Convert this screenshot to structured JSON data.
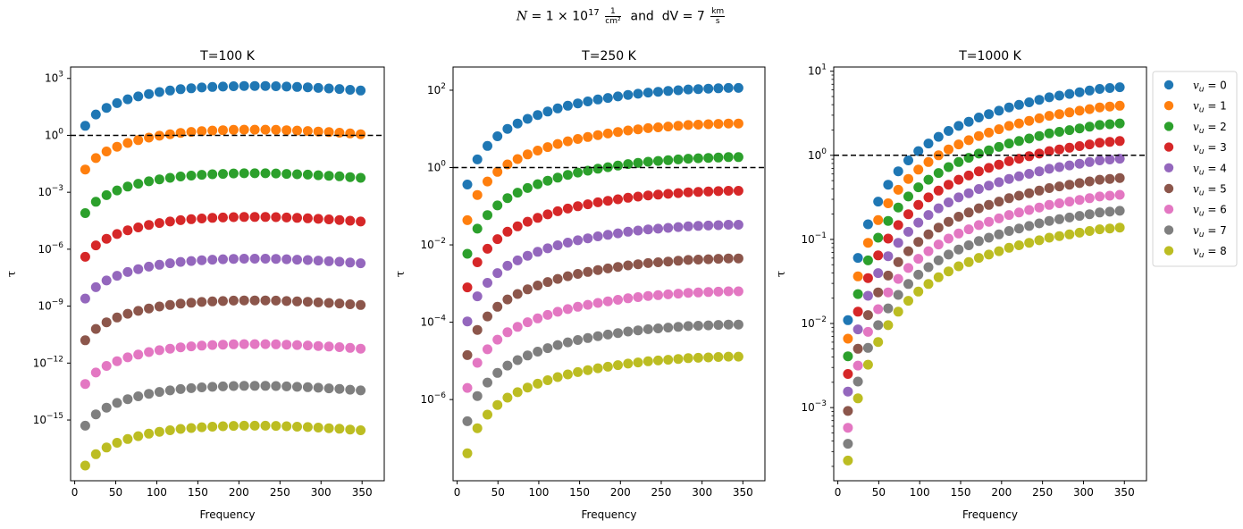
{
  "suptitle": {
    "N_symbol": "N",
    "N_value": "= 1 × 10",
    "N_exp": "17",
    "N_unit_num": "1",
    "N_unit_den": "cm²",
    "connector": "and",
    "dV_label": "dV = 7",
    "dV_unit_num": "km",
    "dV_unit_den": "s"
  },
  "legend": {
    "entries": [
      "v_u = 0",
      "v_u = 1",
      "v_u = 2",
      "v_u = 3",
      "v_u = 4",
      "v_u = 5",
      "v_u = 6",
      "v_u = 7",
      "v_u = 8"
    ],
    "symbol": "v",
    "subscript": "u",
    "values": [
      "0",
      "1",
      "2",
      "3",
      "4",
      "5",
      "6",
      "7",
      "8"
    ]
  },
  "colors": [
    "#1f77b4",
    "#ff7f0e",
    "#2ca02c",
    "#d62728",
    "#9467bd",
    "#8c564b",
    "#e377c2",
    "#7f7f7f",
    "#bcbd22"
  ],
  "chart_data": [
    {
      "type": "scatter",
      "title": "T=100 K",
      "xlabel": "Frequency",
      "ylabel": "τ",
      "yscale": "log",
      "xlim": [
        -5,
        377
      ],
      "ylim_log10": [
        -18.2,
        3.6
      ],
      "xticks": [
        "0",
        "50",
        "100",
        "150",
        "200",
        "250",
        "300",
        "350"
      ],
      "yticks": [
        {
          "exp": 3,
          "label": "3"
        },
        {
          "exp": 0,
          "label": "0"
        },
        {
          "exp": -3,
          "label": "−3"
        },
        {
          "exp": -6,
          "label": "−6"
        },
        {
          "exp": -9,
          "label": "−9"
        },
        {
          "exp": -12,
          "label": "−12"
        },
        {
          "exp": -15,
          "label": "−15"
        }
      ],
      "hline": 1,
      "x_start": 12.9,
      "x_step": 12.9,
      "n_points": 27,
      "shape_log10": [
        -2.1,
        -1.5,
        -1.15,
        -0.9,
        -0.7,
        -0.55,
        -0.42,
        -0.32,
        -0.24,
        -0.17,
        -0.12,
        -0.08,
        -0.05,
        -0.03,
        -0.01,
        0,
        0,
        0,
        -0.01,
        -0.03,
        -0.05,
        -0.07,
        -0.1,
        -0.13,
        -0.16,
        -0.2,
        -0.24
      ],
      "series_peak_log10": [
        2.6,
        0.3,
        -2.0,
        -4.3,
        -6.5,
        -8.7,
        -11.0,
        -13.2,
        -15.3
      ]
    },
    {
      "type": "scatter",
      "title": "T=250 K",
      "xlabel": "Frequency",
      "ylabel": "τ",
      "yscale": "log",
      "xlim": [
        -5,
        377
      ],
      "ylim_log10": [
        -8.1,
        2.6
      ],
      "xticks": [
        "0",
        "50",
        "100",
        "150",
        "200",
        "250",
        "300",
        "350"
      ],
      "yticks": [
        {
          "exp": 2,
          "label": "2"
        },
        {
          "exp": 0,
          "label": "0"
        },
        {
          "exp": -2,
          "label": "−2"
        },
        {
          "exp": -4,
          "label": "−4"
        },
        {
          "exp": -6,
          "label": "−6"
        }
      ],
      "hline": 1,
      "x_start": 12.5,
      "x_step": 12.3,
      "n_points": 28,
      "shape_log10": [
        -2.5,
        -1.85,
        -1.5,
        -1.25,
        -1.06,
        -0.92,
        -0.8,
        -0.7,
        -0.61,
        -0.53,
        -0.46,
        -0.4,
        -0.35,
        -0.3,
        -0.26,
        -0.22,
        -0.18,
        -0.15,
        -0.12,
        -0.1,
        -0.08,
        -0.06,
        -0.04,
        -0.03,
        -0.02,
        -0.01,
        0,
        0
      ],
      "series_peak_log10": [
        2.06,
        1.14,
        0.27,
        -0.6,
        -1.48,
        -2.35,
        -3.2,
        -4.06,
        -4.89
      ]
    },
    {
      "type": "scatter",
      "title": "T=1000 K",
      "xlabel": "Frequency",
      "ylabel": "τ",
      "yscale": "log",
      "xlim": [
        -5,
        377
      ],
      "ylim_log10": [
        -3.87,
        1.05
      ],
      "xticks": [
        "0",
        "50",
        "100",
        "150",
        "200",
        "250",
        "300",
        "350"
      ],
      "yticks": [
        {
          "exp": 1,
          "label": "1"
        },
        {
          "exp": 0,
          "label": "0"
        },
        {
          "exp": -1,
          "label": "−1"
        },
        {
          "exp": -2,
          "label": "−2"
        },
        {
          "exp": -3,
          "label": "−3"
        }
      ],
      "hline": 1,
      "x_start": 12.3,
      "x_step": 12.3,
      "n_points": 28,
      "shape_log10": [
        -2.77,
        -2.03,
        -1.63,
        -1.36,
        -1.16,
        -1.0,
        -0.87,
        -0.76,
        -0.67,
        -0.59,
        -0.52,
        -0.46,
        -0.41,
        -0.36,
        -0.32,
        -0.28,
        -0.24,
        -0.21,
        -0.18,
        -0.15,
        -0.12,
        -0.1,
        -0.08,
        -0.06,
        -0.04,
        -0.02,
        -0.01,
        0
      ],
      "series_peak_log10": [
        0.81,
        0.59,
        0.38,
        0.17,
        -0.04,
        -0.27,
        -0.47,
        -0.66,
        -0.86
      ]
    }
  ]
}
